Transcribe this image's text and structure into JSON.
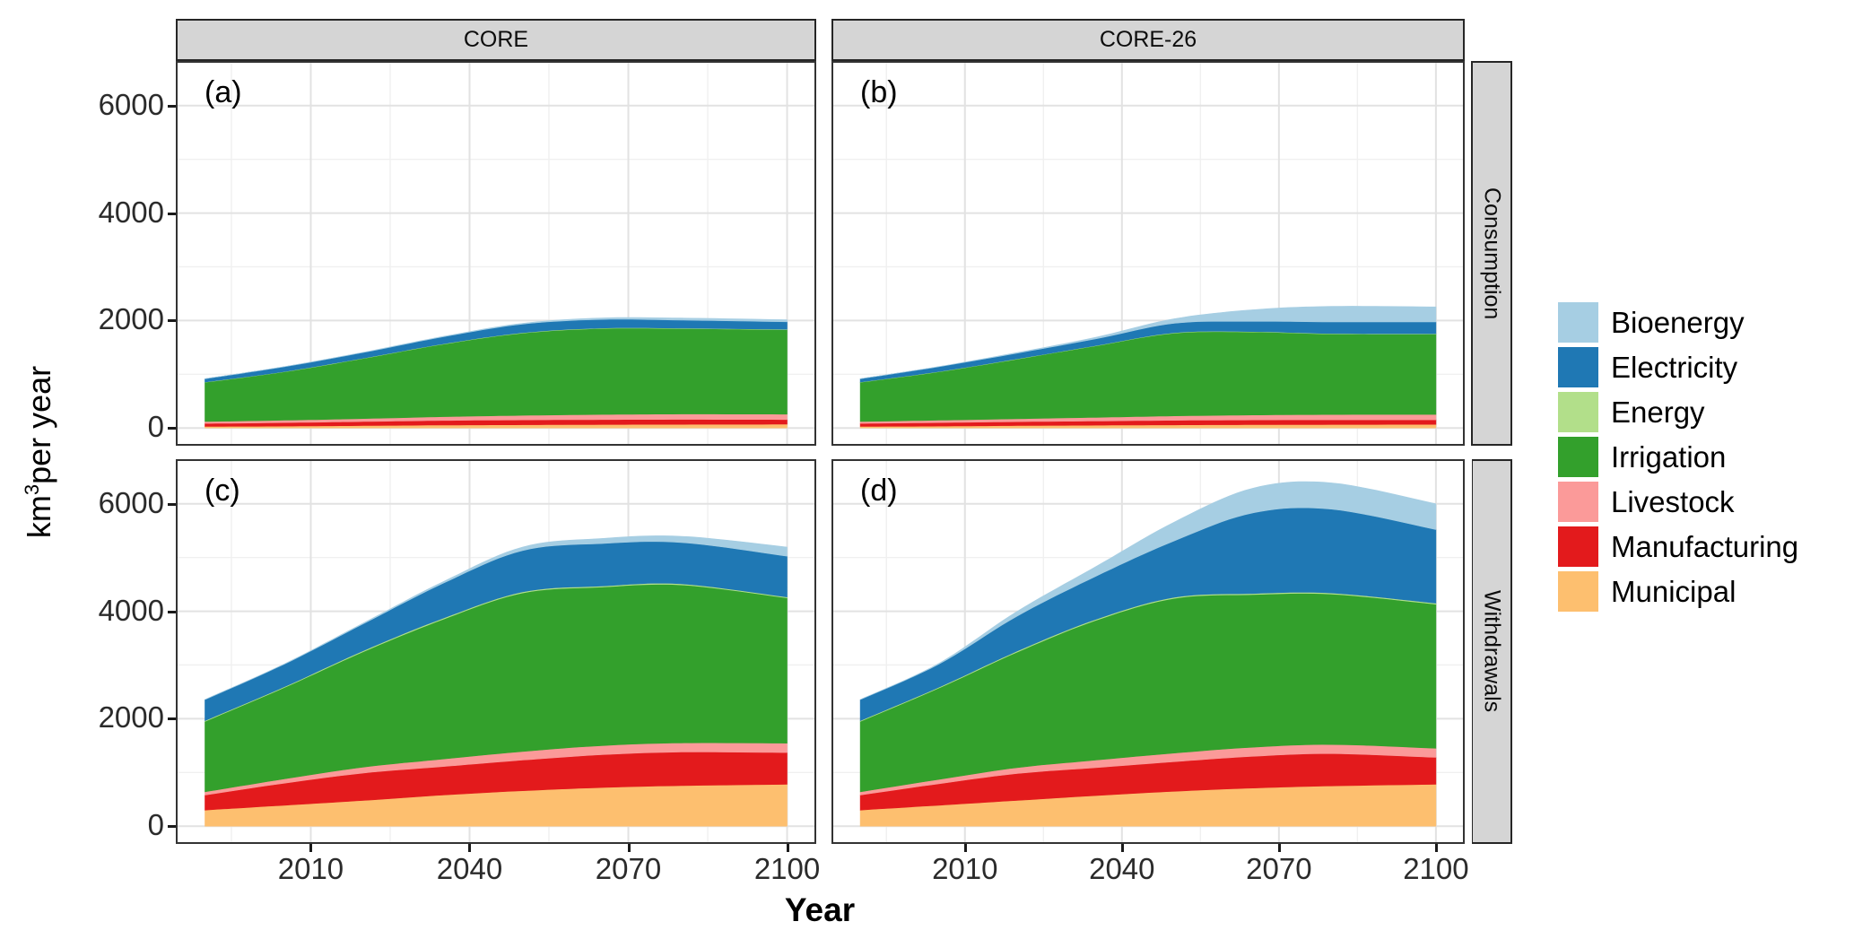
{
  "figure": {
    "x_label": "Year",
    "y_label_prefix": "km",
    "y_label_sup": "3",
    "y_label_suffix": "per year",
    "facet_cols": [
      "CORE",
      "CORE-26"
    ],
    "facet_rows": [
      "Consumption",
      "Withdrawals"
    ],
    "panel_labels": [
      "(a)",
      "(b)",
      "(c)",
      "(d)"
    ]
  },
  "legend": {
    "items": [
      {
        "label": "Bioenergy",
        "color": "#A6CEE3"
      },
      {
        "label": "Electricity",
        "color": "#1F78B4"
      },
      {
        "label": "Energy",
        "color": "#B2DF8A"
      },
      {
        "label": "Irrigation",
        "color": "#33A02C"
      },
      {
        "label": "Livestock",
        "color": "#FB9A99"
      },
      {
        "label": "Manufacturing",
        "color": "#E31A1C"
      },
      {
        "label": "Municipal",
        "color": "#FDBF6F"
      }
    ]
  },
  "chart_data": [
    {
      "type": "area",
      "stacked": true,
      "panel_label": "(a)",
      "facet_col": "CORE",
      "facet_row": "Consumption",
      "title": "CORE Consumption",
      "xlabel": "Year",
      "ylabel": "km3 per year",
      "xlim": [
        1984.5,
        2105.5
      ],
      "ylim": [
        -330,
        6830
      ],
      "x_ticks": [
        2010,
        2040,
        2070,
        2100
      ],
      "x_minor": [
        1995,
        2025,
        2055,
        2085
      ],
      "y_ticks": [
        0,
        2000,
        4000,
        6000
      ],
      "y_minor": [
        1000,
        3000,
        5000
      ],
      "grid": true,
      "legend_position": "right",
      "x": [
        1990,
        2005,
        2020,
        2035,
        2050,
        2065,
        2080,
        2100
      ],
      "series": [
        {
          "name": "Municipal",
          "color": "#FDBF6F",
          "values": [
            30,
            35,
            45,
            55,
            60,
            65,
            68,
            70
          ]
        },
        {
          "name": "Manufacturing",
          "color": "#E31A1C",
          "values": [
            55,
            65,
            75,
            85,
            90,
            92,
            92,
            88
          ]
        },
        {
          "name": "Livestock",
          "color": "#FB9A99",
          "values": [
            35,
            45,
            55,
            70,
            85,
            95,
            100,
            100
          ]
        },
        {
          "name": "Irrigation",
          "color": "#33A02C",
          "values": [
            730,
            900,
            1120,
            1350,
            1530,
            1600,
            1590,
            1570
          ]
        },
        {
          "name": "Energy",
          "color": "#B2DF8A",
          "values": [
            5,
            5,
            6,
            6,
            8,
            8,
            8,
            8
          ]
        },
        {
          "name": "Electricity",
          "color": "#1F78B4",
          "values": [
            60,
            90,
            105,
            130,
            160,
            160,
            150,
            140
          ]
        },
        {
          "name": "Bioenergy",
          "color": "#A6CEE3",
          "values": [
            0,
            2,
            5,
            8,
            15,
            28,
            38,
            38
          ]
        }
      ]
    },
    {
      "type": "area",
      "stacked": true,
      "panel_label": "(b)",
      "facet_col": "CORE-26",
      "facet_row": "Consumption",
      "title": "CORE-26 Consumption",
      "xlabel": "Year",
      "ylabel": "km3 per year",
      "xlim": [
        1984.5,
        2105.5
      ],
      "ylim": [
        -330,
        6830
      ],
      "x_ticks": [
        2010,
        2040,
        2070,
        2100
      ],
      "x_minor": [
        1995,
        2025,
        2055,
        2085
      ],
      "y_ticks": [
        0,
        2000,
        4000,
        6000
      ],
      "y_minor": [
        1000,
        3000,
        5000
      ],
      "grid": true,
      "legend_position": "right",
      "x": [
        1990,
        2005,
        2020,
        2035,
        2050,
        2065,
        2080,
        2100
      ],
      "series": [
        {
          "name": "Municipal",
          "color": "#FDBF6F",
          "values": [
            30,
            35,
            45,
            52,
            58,
            62,
            65,
            68
          ]
        },
        {
          "name": "Manufacturing",
          "color": "#E31A1C",
          "values": [
            55,
            65,
            72,
            78,
            85,
            88,
            88,
            84
          ]
        },
        {
          "name": "Livestock",
          "color": "#FB9A99",
          "values": [
            35,
            45,
            55,
            68,
            82,
            92,
            98,
            100
          ]
        },
        {
          "name": "Irrigation",
          "color": "#33A02C",
          "values": [
            730,
            900,
            1110,
            1330,
            1540,
            1545,
            1500,
            1495
          ]
        },
        {
          "name": "Energy",
          "color": "#B2DF8A",
          "values": [
            5,
            5,
            6,
            6,
            8,
            8,
            8,
            8
          ]
        },
        {
          "name": "Electricity",
          "color": "#1F78B4",
          "values": [
            60,
            90,
            105,
            125,
            175,
            190,
            215,
            218
          ]
        },
        {
          "name": "Bioenergy",
          "color": "#A6CEE3",
          "values": [
            0,
            3,
            12,
            30,
            85,
            215,
            290,
            280
          ]
        }
      ]
    },
    {
      "type": "area",
      "stacked": true,
      "panel_label": "(c)",
      "facet_col": "CORE",
      "facet_row": "Withdrawals",
      "title": "CORE Withdrawals",
      "xlabel": "Year",
      "ylabel": "km3 per year",
      "xlim": [
        1984.5,
        2105.5
      ],
      "ylim": [
        -330,
        6830
      ],
      "x_ticks": [
        2010,
        2040,
        2070,
        2100
      ],
      "x_minor": [
        1995,
        2025,
        2055,
        2085
      ],
      "y_ticks": [
        0,
        2000,
        4000,
        6000
      ],
      "y_minor": [
        1000,
        3000,
        5000
      ],
      "grid": true,
      "legend_position": "right",
      "x": [
        1990,
        2005,
        2020,
        2035,
        2050,
        2065,
        2080,
        2100
      ],
      "series": [
        {
          "name": "Municipal",
          "color": "#FDBF6F",
          "values": [
            300,
            390,
            480,
            580,
            660,
            720,
            755,
            780
          ]
        },
        {
          "name": "Manufacturing",
          "color": "#E31A1C",
          "values": [
            280,
            410,
            510,
            530,
            570,
            610,
            625,
            590
          ]
        },
        {
          "name": "Livestock",
          "color": "#FB9A99",
          "values": [
            60,
            80,
            110,
            140,
            160,
            170,
            170,
            175
          ]
        },
        {
          "name": "Irrigation",
          "color": "#33A02C",
          "values": [
            1310,
            1700,
            2150,
            2600,
            2950,
            2950,
            2940,
            2705
          ]
        },
        {
          "name": "Energy",
          "color": "#B2DF8A",
          "values": [
            15,
            15,
            20,
            20,
            20,
            20,
            20,
            15
          ]
        },
        {
          "name": "Electricity",
          "color": "#1F78B4",
          "values": [
            390,
            420,
            500,
            650,
            770,
            790,
            770,
            760
          ]
        },
        {
          "name": "Bioenergy",
          "color": "#A6CEE3",
          "values": [
            0,
            5,
            15,
            30,
            65,
            95,
            115,
            170
          ]
        }
      ]
    },
    {
      "type": "area",
      "stacked": true,
      "panel_label": "(d)",
      "facet_col": "CORE-26",
      "facet_row": "Withdrawals",
      "title": "CORE-26 Withdrawals",
      "xlabel": "Year",
      "ylabel": "km3 per year",
      "xlim": [
        1984.5,
        2105.5
      ],
      "ylim": [
        -330,
        6830
      ],
      "x_ticks": [
        2010,
        2040,
        2070,
        2100
      ],
      "x_minor": [
        1995,
        2025,
        2055,
        2085
      ],
      "y_ticks": [
        0,
        2000,
        4000,
        6000
      ],
      "y_minor": [
        1000,
        3000,
        5000
      ],
      "grid": true,
      "legend_position": "right",
      "x": [
        1990,
        2005,
        2020,
        2035,
        2050,
        2065,
        2080,
        2100
      ],
      "series": [
        {
          "name": "Municipal",
          "color": "#FDBF6F",
          "values": [
            300,
            390,
            480,
            570,
            650,
            710,
            750,
            780
          ]
        },
        {
          "name": "Manufacturing",
          "color": "#E31A1C",
          "values": [
            280,
            400,
            500,
            520,
            550,
            590,
            600,
            500
          ]
        },
        {
          "name": "Livestock",
          "color": "#FB9A99",
          "values": [
            60,
            80,
            110,
            140,
            160,
            170,
            170,
            170
          ]
        },
        {
          "name": "Irrigation",
          "color": "#33A02C",
          "values": [
            1310,
            1700,
            2150,
            2600,
            2880,
            2840,
            2800,
            2680
          ]
        },
        {
          "name": "Energy",
          "color": "#B2DF8A",
          "values": [
            15,
            15,
            20,
            20,
            20,
            20,
            20,
            20
          ]
        },
        {
          "name": "Electricity",
          "color": "#1F78B4",
          "values": [
            390,
            430,
            650,
            800,
            1050,
            1500,
            1560,
            1370
          ]
        },
        {
          "name": "Bioenergy",
          "color": "#A6CEE3",
          "values": [
            0,
            15,
            90,
            180,
            350,
            460,
            490,
            480
          ]
        }
      ]
    }
  ]
}
